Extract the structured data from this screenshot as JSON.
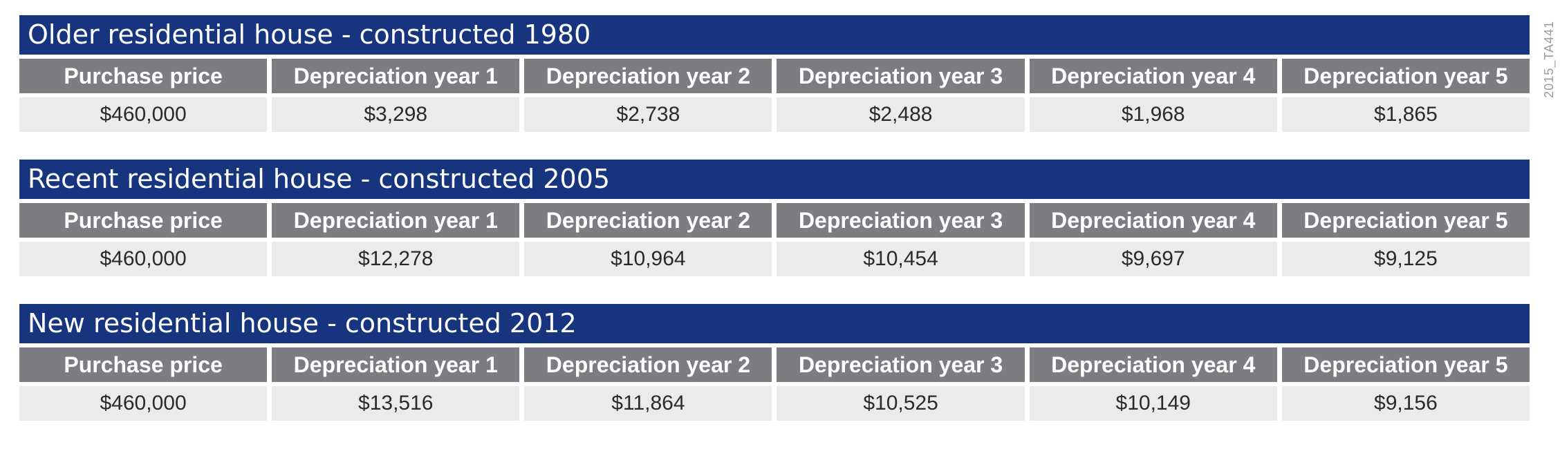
{
  "figure_code": "2015_TA441",
  "tables": [
    {
      "title": "Older residential house - constructed 1980",
      "headers": [
        "Purchase price",
        "Depreciation year 1",
        "Depreciation year 2",
        "Depreciation year 3",
        "Depreciation year 4",
        "Depreciation year 5"
      ],
      "values": [
        "$460,000",
        "$3,298",
        "$2,738",
        "$2,488",
        "$1,968",
        "$1,865"
      ]
    },
    {
      "title": "Recent residential house - constructed 2005",
      "headers": [
        "Purchase price",
        "Depreciation year 1",
        "Depreciation year 2",
        "Depreciation year 3",
        "Depreciation year 4",
        "Depreciation year 5"
      ],
      "values": [
        "$460,000",
        "$12,278",
        "$10,964",
        "$10,454",
        "$9,697",
        "$9,125"
      ]
    },
    {
      "title": "New residential house - constructed 2012",
      "headers": [
        "Purchase price",
        "Depreciation year 1",
        "Depreciation year 2",
        "Depreciation year 3",
        "Depreciation year 4",
        "Depreciation year 5"
      ],
      "values": [
        "$460,000",
        "$13,516",
        "$11,864",
        "$10,525",
        "$10,149",
        "$9,156"
      ]
    }
  ]
}
